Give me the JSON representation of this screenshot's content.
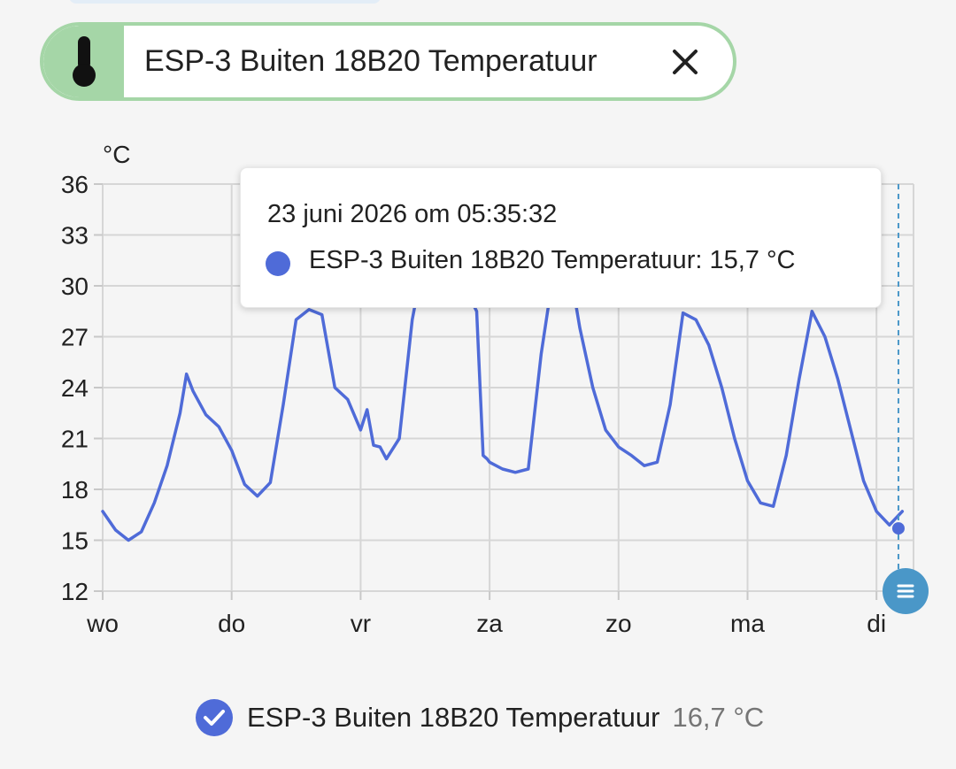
{
  "entity_chip": {
    "label": "ESP-3 Buiten 18B20 Temperatuur",
    "icon": "thermometer-icon",
    "close_icon": "close-icon",
    "color": "#a5d6a7"
  },
  "chart_data": {
    "type": "line",
    "ylabel": "°C",
    "ylim": [
      12,
      36
    ],
    "yticks": [
      12,
      15,
      18,
      21,
      24,
      27,
      30,
      33,
      36
    ],
    "xticks": [
      "wo",
      "do",
      "vr",
      "za",
      "zo",
      "ma",
      "di"
    ],
    "grid": true,
    "series": [
      {
        "name": "ESP-3 Buiten 18B20 Temperatuur",
        "color": "#4f6bd8",
        "x": [
          0,
          0.1,
          0.2,
          0.3,
          0.4,
          0.5,
          0.6,
          0.65,
          0.7,
          0.8,
          0.9,
          1.0,
          1.1,
          1.2,
          1.3,
          1.4,
          1.5,
          1.6,
          1.7,
          1.8,
          1.9,
          2.0,
          2.05,
          2.1,
          2.15,
          2.2,
          2.3,
          2.4,
          2.5,
          2.6,
          2.7,
          2.8,
          2.9,
          2.95,
          2.98,
          3.0,
          3.1,
          3.2,
          3.3,
          3.4,
          3.5,
          3.6,
          3.7,
          3.8,
          3.9,
          4.0,
          4.1,
          4.2,
          4.3,
          4.4,
          4.5,
          4.6,
          4.7,
          4.8,
          4.9,
          5.0,
          5.1,
          5.2,
          5.3,
          5.4,
          5.5,
          5.6,
          5.7,
          5.8,
          5.9,
          6.0,
          6.1,
          6.2
        ],
        "values": [
          16.7,
          15.6,
          15.0,
          15.5,
          17.2,
          19.4,
          22.5,
          24.8,
          23.8,
          22.4,
          21.7,
          20.3,
          18.3,
          17.6,
          18.4,
          23.0,
          28.0,
          28.6,
          28.3,
          24.0,
          23.3,
          21.5,
          22.7,
          20.6,
          20.5,
          19.8,
          21.0,
          28.0,
          32.0,
          34.0,
          33.0,
          30.0,
          28.5,
          20.0,
          19.8,
          19.6,
          19.2,
          19.0,
          19.2,
          26.0,
          31.0,
          32.0,
          27.5,
          24.0,
          21.5,
          20.5,
          20.0,
          19.4,
          19.6,
          23.0,
          28.4,
          28.0,
          26.5,
          24.0,
          21.0,
          18.5,
          17.2,
          17.0,
          20.0,
          24.5,
          28.5,
          27.0,
          24.5,
          21.5,
          18.5,
          16.7,
          15.9,
          16.7
        ]
      }
    ],
    "legend_value": "16,7 °C"
  },
  "tooltip": {
    "time": "23 juni 2026 om 05:35:32",
    "value_text": "ESP-3 Buiten 18B20 Temperatuur: 15,7 °C",
    "marker_value": 15.7,
    "marker_x": 6.17
  },
  "legend": {
    "check_icon": "check-circle-icon",
    "name": "ESP-3 Buiten 18B20 Temperatuur",
    "value": "16,7 °C"
  },
  "fab": {
    "icon": "list-icon"
  },
  "colors": {
    "accent": "#4f6bd8",
    "chip": "#a5d6a7",
    "fab": "#4a97c8"
  }
}
